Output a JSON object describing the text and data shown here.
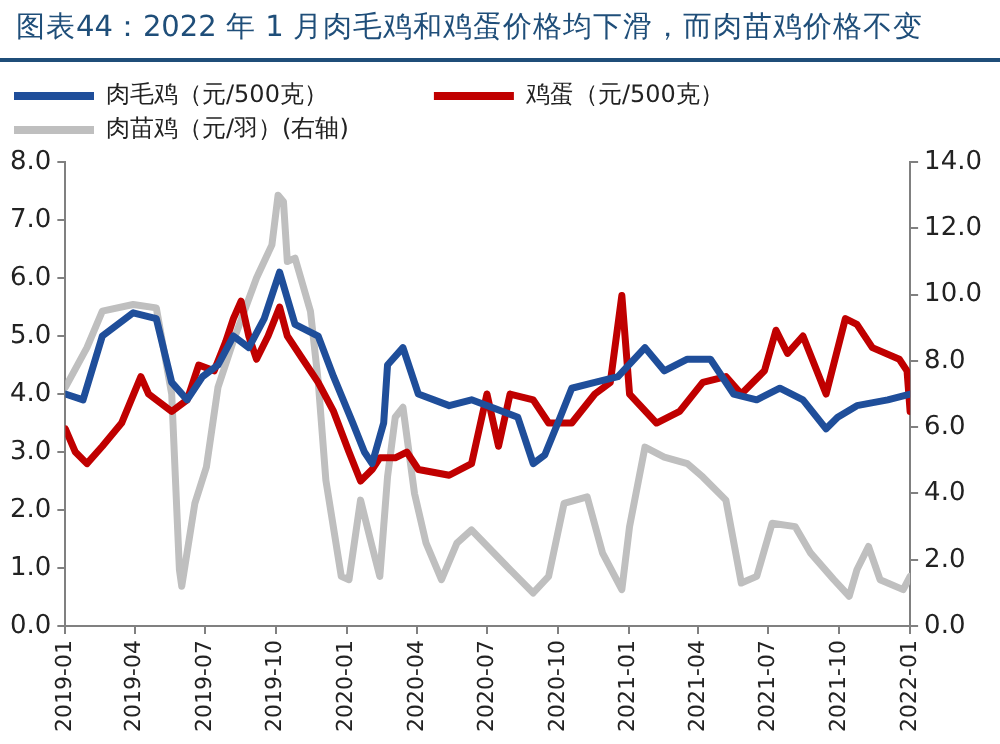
{
  "chart_data": {
    "type": "line",
    "title": "图表44：2022 年 1 月肉毛鸡和鸡蛋价格均下滑，而肉苗鸡价格不变",
    "legend": "top",
    "grid": false,
    "marker": "none",
    "line_style": "solid",
    "xlim": [
      "2019-01-01",
      "2022-01-01"
    ],
    "xticks": [
      "2019-01",
      "2019-04",
      "2019-07",
      "2019-10",
      "2020-01",
      "2020-04",
      "2020-07",
      "2020-10",
      "2021-01",
      "2021-04",
      "2021-07",
      "2021-10",
      "2022-01"
    ],
    "ylim": [
      0,
      8
    ],
    "yticks": [
      {
        "value": 0,
        "label": "0.0"
      },
      {
        "value": 1,
        "label": "1.0"
      },
      {
        "value": 2,
        "label": "2.0"
      },
      {
        "value": 3,
        "label": "3.0"
      },
      {
        "value": 4,
        "label": "4.0"
      },
      {
        "value": 5,
        "label": "5.0"
      },
      {
        "value": 6,
        "label": "6.0"
      },
      {
        "value": 7,
        "label": "7.0"
      },
      {
        "value": 8,
        "label": "8.0"
      }
    ],
    "y2lim": [
      0,
      14
    ],
    "y2ticks": [
      {
        "value": 0,
        "label": "0.0"
      },
      {
        "value": 2,
        "label": "2.0"
      },
      {
        "value": 4,
        "label": "4.0"
      },
      {
        "value": 6,
        "label": "6.0"
      },
      {
        "value": 8,
        "label": "8.0"
      },
      {
        "value": 10,
        "label": "10.0"
      },
      {
        "value": 12,
        "label": "12.0"
      },
      {
        "value": 14,
        "label": "14.0"
      }
    ],
    "series": [
      {
        "name": "肉毛鸡（元/500克）",
        "color": "#1f4e9a",
        "x": [
          "2019-01-01",
          "2019-01-24",
          "2019-02-18",
          "2019-03-30",
          "2019-04-29",
          "2019-05-19",
          "2019-06-08",
          "2019-06-28",
          "2019-07-18",
          "2019-08-07",
          "2019-08-27",
          "2019-09-16",
          "2019-10-06",
          "2019-10-26",
          "2019-11-25",
          "2019-12-15",
          "2020-01-09",
          "2020-01-24",
          "2020-02-03",
          "2020-02-18",
          "2020-02-23",
          "2020-03-14",
          "2020-04-03",
          "2020-05-13",
          "2020-06-11",
          "2020-08-10",
          "2020-08-30",
          "2020-09-14",
          "2020-10-04",
          "2020-10-19",
          "2020-11-18",
          "2020-12-18",
          "2021-01-22",
          "2021-02-16",
          "2021-03-18",
          "2021-04-17",
          "2021-05-17",
          "2021-06-16",
          "2021-07-16",
          "2021-08-15",
          "2021-09-14",
          "2021-09-29",
          "2021-10-24",
          "2021-12-03",
          "2022-01-01"
        ],
        "values": [
          4.0,
          3.9,
          5.0,
          5.4,
          5.3,
          4.2,
          3.9,
          4.3,
          4.5,
          5.0,
          4.8,
          5.3,
          6.1,
          5.2,
          5.0,
          4.3,
          3.5,
          3.0,
          2.8,
          3.5,
          4.5,
          4.8,
          4.0,
          3.8,
          3.9,
          3.6,
          2.8,
          2.95,
          3.6,
          4.1,
          4.2,
          4.3,
          4.8,
          4.4,
          4.6,
          4.6,
          4.0,
          3.9,
          4.1,
          3.9,
          3.4,
          3.6,
          3.8,
          3.9,
          4.0
        ]
      },
      {
        "name": "鸡蛋（元/500克）",
        "color": "#c00000",
        "x": [
          "2019-01-01",
          "2019-01-14",
          "2019-01-29",
          "2019-02-18",
          "2019-03-15",
          "2019-04-09",
          "2019-04-19",
          "2019-05-19",
          "2019-06-08",
          "2019-06-23",
          "2019-07-13",
          "2019-07-28",
          "2019-08-07",
          "2019-08-17",
          "2019-08-27",
          "2019-09-06",
          "2019-09-21",
          "2019-10-06",
          "2019-10-16",
          "2019-11-05",
          "2019-11-25",
          "2019-12-15",
          "2020-01-04",
          "2020-01-19",
          "2020-02-03",
          "2020-02-13",
          "2020-03-04",
          "2020-03-19",
          "2020-04-03",
          "2020-05-13",
          "2020-06-11",
          "2020-07-01",
          "2020-07-16",
          "2020-07-31",
          "2020-08-30",
          "2020-09-19",
          "2020-10-19",
          "2020-11-18",
          "2020-12-08",
          "2020-12-23",
          "2021-01-02",
          "2021-02-06",
          "2021-03-08",
          "2021-04-07",
          "2021-05-07",
          "2021-05-27",
          "2021-06-26",
          "2021-07-11",
          "2021-07-26",
          "2021-08-15",
          "2021-09-14",
          "2021-10-09",
          "2021-10-24",
          "2021-11-13",
          "2021-12-18",
          "2021-12-28",
          "2022-01-01"
        ],
        "values": [
          3.4,
          3.0,
          2.8,
          3.1,
          3.5,
          4.3,
          4.0,
          3.7,
          3.9,
          4.5,
          4.4,
          4.9,
          5.3,
          5.6,
          5.0,
          4.6,
          5.0,
          5.5,
          5.0,
          4.6,
          4.2,
          3.7,
          3.0,
          2.5,
          2.7,
          2.9,
          2.9,
          3.0,
          2.7,
          2.6,
          2.8,
          4.0,
          3.1,
          4.0,
          3.9,
          3.5,
          3.5,
          4.0,
          4.2,
          5.7,
          4.0,
          3.5,
          3.7,
          4.2,
          4.3,
          4.0,
          4.4,
          5.1,
          4.7,
          5.0,
          4.0,
          5.3,
          5.2,
          4.8,
          4.6,
          4.4,
          3.7
        ]
      },
      {
        "name": "肉苗鸡（元/羽）(右轴)",
        "color": "#bfbfbf",
        "axis": "y2",
        "x": [
          "2019-01-01",
          "2019-01-29",
          "2019-02-18",
          "2019-03-30",
          "2019-04-29",
          "2019-05-19",
          "2019-05-29",
          "2019-06-01",
          "2019-06-18",
          "2019-07-03",
          "2019-07-18",
          "2019-08-07",
          "2019-09-06",
          "2019-09-26",
          "2019-10-04",
          "2019-10-11",
          "2019-10-16",
          "2019-10-26",
          "2019-11-15",
          "2019-11-25",
          "2019-12-05",
          "2019-12-25",
          "2020-01-04",
          "2020-01-19",
          "2020-02-03",
          "2020-02-13",
          "2020-02-23",
          "2020-03-04",
          "2020-03-14",
          "2020-03-29",
          "2020-04-13",
          "2020-05-03",
          "2020-05-23",
          "2020-06-11",
          "2020-07-31",
          "2020-08-30",
          "2020-09-19",
          "2020-10-09",
          "2020-11-08",
          "2020-11-28",
          "2020-12-23",
          "2021-01-02",
          "2021-01-22",
          "2021-02-16",
          "2021-03-18",
          "2021-04-07",
          "2021-05-07",
          "2021-05-27",
          "2021-06-16",
          "2021-07-06",
          "2021-08-05",
          "2021-08-25",
          "2021-09-24",
          "2021-10-14",
          "2021-10-24",
          "2021-11-08",
          "2021-11-23",
          "2021-12-23",
          "2022-01-01"
        ],
        "values": [
          7.2,
          8.4,
          9.5,
          9.7,
          9.6,
          7.0,
          1.7,
          1.2,
          3.7,
          4.8,
          7.2,
          8.6,
          10.5,
          11.5,
          13.0,
          12.8,
          11.0,
          11.1,
          9.5,
          7.4,
          4.4,
          1.5,
          1.4,
          3.8,
          2.4,
          1.5,
          4.5,
          6.3,
          6.6,
          4.0,
          2.5,
          1.4,
          2.5,
          2.9,
          1.7,
          1.0,
          1.5,
          3.7,
          3.9,
          2.2,
          1.1,
          3.0,
          5.4,
          5.1,
          4.9,
          4.5,
          3.8,
          1.3,
          1.5,
          3.1,
          3.0,
          2.2,
          1.4,
          0.9,
          1.7,
          2.4,
          1.4,
          1.1,
          1.5
        ]
      }
    ]
  }
}
